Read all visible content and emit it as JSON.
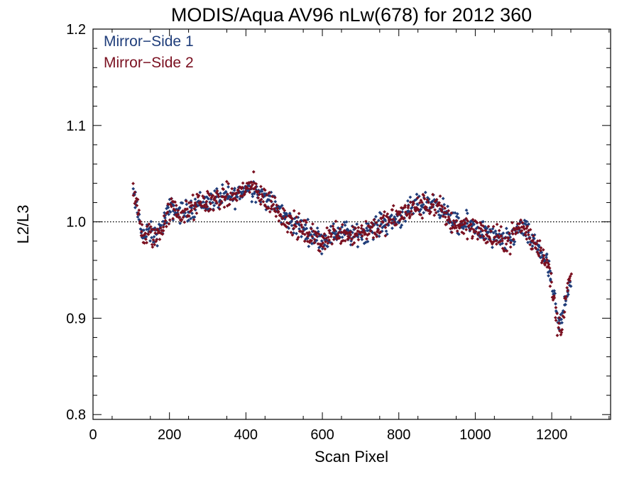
{
  "chart_data": {
    "type": "scatter",
    "title": "MODIS/Aqua AV96 nLw(678) for 2012 360",
    "xlabel": "Scan Pixel",
    "ylabel": "L2/L3",
    "xlim": [
      0,
      1354
    ],
    "ylim": [
      0.795,
      1.2
    ],
    "xticks": [
      0,
      200,
      400,
      600,
      800,
      1000,
      1200
    ],
    "xtick_labels": [
      "0",
      "200",
      "400",
      "600",
      "800",
      "1000",
      "1200"
    ],
    "yticks": [
      0.8,
      0.9,
      1.0,
      1.1,
      1.2
    ],
    "ytick_labels": [
      "0.8",
      "0.9",
      "1.0",
      "1.1",
      "1.2"
    ],
    "reference_line": {
      "y": 1.0,
      "style": "dotted",
      "color": "#000000"
    },
    "grid": false,
    "legend_position": "top-left",
    "series": [
      {
        "name": "Mirror−Side 1",
        "color": "#1f3d7a",
        "marker": "diamond",
        "trend": [
          [
            105,
            1.03
          ],
          [
            115,
            1.012
          ],
          [
            125,
            0.995
          ],
          [
            135,
            0.985
          ],
          [
            145,
            0.99
          ],
          [
            160,
            0.985
          ],
          [
            175,
            0.99
          ],
          [
            190,
            1.005
          ],
          [
            205,
            1.015
          ],
          [
            220,
            1.01
          ],
          [
            240,
            1.01
          ],
          [
            260,
            1.015
          ],
          [
            280,
            1.02
          ],
          [
            300,
            1.02
          ],
          [
            330,
            1.025
          ],
          [
            360,
            1.025
          ],
          [
            380,
            1.028
          ],
          [
            400,
            1.035
          ],
          [
            420,
            1.035
          ],
          [
            440,
            1.028
          ],
          [
            460,
            1.022
          ],
          [
            480,
            1.015
          ],
          [
            500,
            1.005
          ],
          [
            520,
            1.0
          ],
          [
            540,
            0.995
          ],
          [
            560,
            0.99
          ],
          [
            580,
            0.985
          ],
          [
            600,
            0.98
          ],
          [
            620,
            0.985
          ],
          [
            640,
            0.99
          ],
          [
            660,
            0.99
          ],
          [
            680,
            0.985
          ],
          [
            700,
            0.988
          ],
          [
            720,
            0.992
          ],
          [
            740,
            0.995
          ],
          [
            760,
            0.998
          ],
          [
            780,
            1.0
          ],
          [
            800,
            1.005
          ],
          [
            820,
            1.01
          ],
          [
            840,
            1.015
          ],
          [
            860,
            1.018
          ],
          [
            880,
            1.02
          ],
          [
            900,
            1.02
          ],
          [
            920,
            1.01
          ],
          [
            940,
            1.0
          ],
          [
            960,
            0.995
          ],
          [
            980,
            0.998
          ],
          [
            1000,
            0.995
          ],
          [
            1020,
            0.99
          ],
          [
            1040,
            0.985
          ],
          [
            1060,
            0.98
          ],
          [
            1080,
            0.98
          ],
          [
            1100,
            0.985
          ],
          [
            1115,
            0.995
          ],
          [
            1130,
            0.99
          ],
          [
            1150,
            0.98
          ],
          [
            1170,
            0.97
          ],
          [
            1185,
            0.96
          ],
          [
            1195,
            0.945
          ],
          [
            1205,
            0.925
          ],
          [
            1215,
            0.895
          ],
          [
            1225,
            0.895
          ],
          [
            1235,
            0.92
          ],
          [
            1245,
            0.935
          ],
          [
            1252,
            0.94
          ]
        ],
        "spread": 0.008
      },
      {
        "name": "Mirror−Side 2",
        "color": "#7a1020",
        "marker": "diamond",
        "trend": [
          [
            105,
            1.035
          ],
          [
            115,
            1.015
          ],
          [
            125,
            0.993
          ],
          [
            135,
            0.983
          ],
          [
            145,
            0.988
          ],
          [
            160,
            0.984
          ],
          [
            175,
            0.988
          ],
          [
            190,
            1.004
          ],
          [
            205,
            1.014
          ],
          [
            220,
            1.01
          ],
          [
            240,
            1.008
          ],
          [
            260,
            1.014
          ],
          [
            280,
            1.019
          ],
          [
            300,
            1.021
          ],
          [
            330,
            1.024
          ],
          [
            360,
            1.026
          ],
          [
            380,
            1.029
          ],
          [
            400,
            1.036
          ],
          [
            420,
            1.036
          ],
          [
            440,
            1.027
          ],
          [
            460,
            1.021
          ],
          [
            480,
            1.014
          ],
          [
            500,
            1.004
          ],
          [
            520,
            0.999
          ],
          [
            540,
            0.994
          ],
          [
            560,
            0.988
          ],
          [
            580,
            0.983
          ],
          [
            600,
            0.98
          ],
          [
            620,
            0.986
          ],
          [
            640,
            0.99
          ],
          [
            660,
            0.989
          ],
          [
            680,
            0.987
          ],
          [
            700,
            0.99
          ],
          [
            720,
            0.993
          ],
          [
            740,
            0.994
          ],
          [
            760,
            0.998
          ],
          [
            780,
            1.002
          ],
          [
            800,
            1.006
          ],
          [
            820,
            1.011
          ],
          [
            840,
            1.013
          ],
          [
            860,
            1.016
          ],
          [
            880,
            1.018
          ],
          [
            900,
            1.016
          ],
          [
            920,
            1.008
          ],
          [
            940,
            0.999
          ],
          [
            960,
            0.996
          ],
          [
            980,
            0.997
          ],
          [
            1000,
            0.993
          ],
          [
            1020,
            0.988
          ],
          [
            1040,
            0.984
          ],
          [
            1060,
            0.982
          ],
          [
            1080,
            0.979
          ],
          [
            1100,
            0.986
          ],
          [
            1115,
            0.997
          ],
          [
            1130,
            0.991
          ],
          [
            1150,
            0.979
          ],
          [
            1170,
            0.972
          ],
          [
            1185,
            0.962
          ],
          [
            1195,
            0.944
          ],
          [
            1205,
            0.922
          ],
          [
            1215,
            0.892
          ],
          [
            1225,
            0.89
          ],
          [
            1235,
            0.918
          ],
          [
            1245,
            0.936
          ],
          [
            1252,
            0.942
          ]
        ],
        "spread": 0.009
      }
    ]
  }
}
